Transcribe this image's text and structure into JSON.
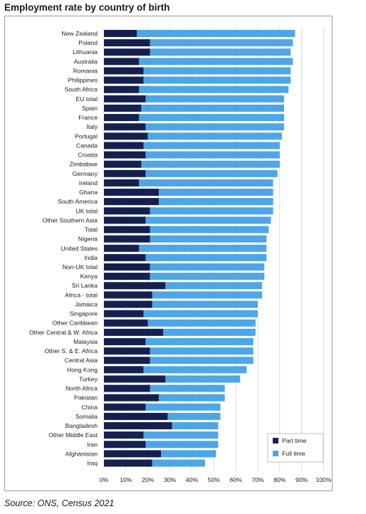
{
  "chart_data": {
    "type": "bar",
    "orientation": "horizontal",
    "stacked": true,
    "title": "Employment rate by country of birth",
    "source": "Source: ONS, Census 2021",
    "xlim": [
      0,
      100
    ],
    "x_ticks": [
      "0%",
      "10%",
      "20%",
      "30%",
      "40%",
      "50%",
      "60%",
      "70%",
      "80%",
      "90%",
      "100%"
    ],
    "grid": "vertical",
    "legend_position": "bottom-right",
    "colors": {
      "Part time": "#14214f",
      "Full time": "#4ea6e6"
    },
    "categories": [
      "New Zealand",
      "Poland",
      "Lithuania",
      "Australia",
      "Romania",
      "Philippines",
      "South Africa",
      "EU total",
      "Spain",
      "France",
      "Italy",
      "Portugal",
      "Canada",
      "Croatia",
      "Zimbabwe",
      "Germany",
      "Ireland",
      "Ghana",
      "South America",
      "UK total",
      "Other Southern Asia",
      "Total",
      "Nigeria",
      "United States",
      "India",
      "Non-UK total",
      "Kenya",
      "Sri Lanka",
      "Africa - total",
      "Jamaica",
      "Singapore",
      "Other Caribbean",
      "Other Central & W. Africa",
      "Malaysia",
      "Other S. & E. Africa",
      "Central Asia",
      "Hong Kong",
      "Turkey",
      "North Africa",
      "Pakistan",
      "China",
      "Somalia",
      "Bangladesh",
      "Other Middle East",
      "Iran",
      "Afghanistan",
      "Iraq"
    ],
    "series": [
      {
        "name": "Part time",
        "values": [
          15,
          21,
          21,
          16,
          18,
          18,
          16,
          19,
          17,
          16,
          19,
          20,
          18,
          19,
          17,
          19,
          16,
          25,
          25,
          21,
          19,
          21,
          21,
          16,
          19,
          21,
          21,
          28,
          22,
          22,
          18,
          20,
          27,
          19,
          21,
          21,
          18,
          28,
          21,
          25,
          19,
          29,
          31,
          18,
          19,
          26,
          22
        ]
      },
      {
        "name": "Full time",
        "values": [
          72,
          65,
          64,
          70,
          67,
          67,
          68,
          63,
          65,
          66,
          63,
          61,
          62,
          61,
          63,
          60,
          61,
          52,
          52,
          56,
          57,
          54,
          53,
          58,
          55,
          52,
          52,
          44,
          50,
          48,
          52,
          49,
          42,
          49,
          47,
          47,
          47,
          34,
          34,
          30,
          34,
          24,
          21,
          34,
          33,
          25,
          24
        ]
      }
    ]
  }
}
